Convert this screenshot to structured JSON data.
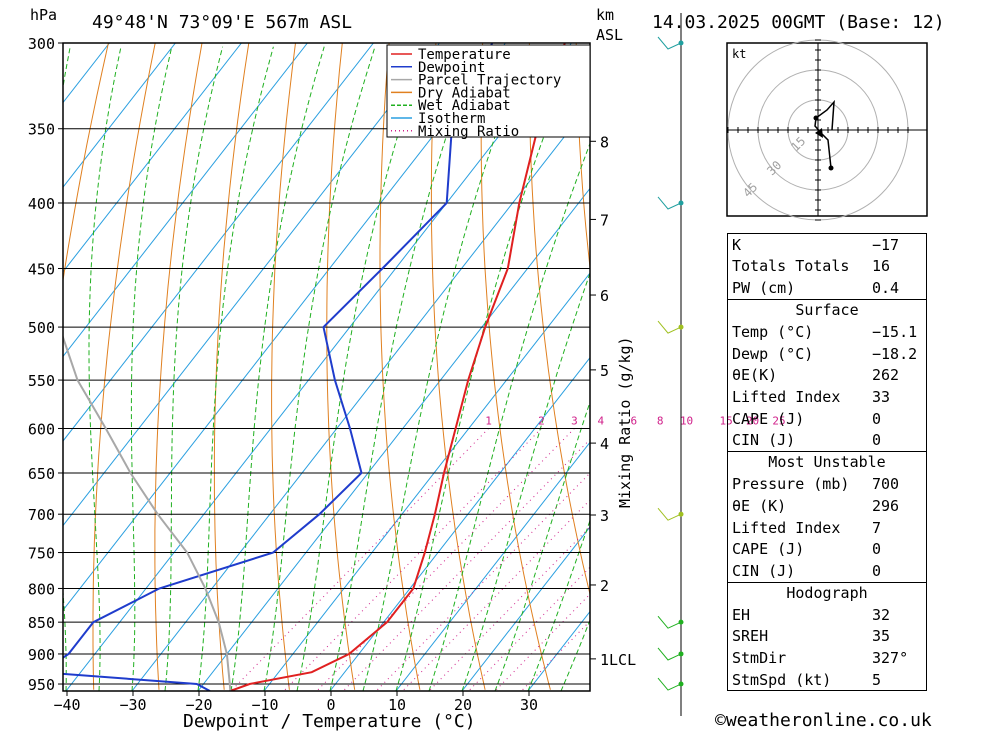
{
  "header": {
    "hpa": "hPa",
    "location": "49°48'N 73°09'E 567m ASL",
    "km": "km",
    "asl": "ASL",
    "date": "14.03.2025 00GMT (Base: 12)"
  },
  "chart_data": {
    "type": "line",
    "title": "",
    "xlabel": "Dewpoint / Temperature (°C)",
    "ylabel": "hPa",
    "y2label": "Mixing Ratio (g/kg)",
    "x_ticks": [
      -40,
      -30,
      -20,
      -10,
      0,
      10,
      20,
      30
    ],
    "x_tick_labels": [
      "−40",
      "−30",
      "−20",
      "−10",
      "0",
      "10",
      "20",
      "30"
    ],
    "y_ticks": [
      300,
      350,
      400,
      450,
      500,
      550,
      600,
      650,
      700,
      750,
      800,
      850,
      900,
      950
    ],
    "km_ticks": [
      {
        "km": "8",
        "p": 358
      },
      {
        "km": "7",
        "p": 412
      },
      {
        "km": "6",
        "p": 472
      },
      {
        "km": "5",
        "p": 540
      },
      {
        "km": "4",
        "p": 616
      },
      {
        "km": "3",
        "p": 701
      },
      {
        "km": "2",
        "p": 795
      },
      {
        "km": "1LCL",
        "p": 908
      }
    ],
    "mixing_ratio_labels": [
      "1",
      "2",
      "3",
      "4",
      "6",
      "8",
      "10",
      "15",
      "20",
      "25"
    ],
    "mixing_ratio_label_x": [
      -7,
      1,
      6,
      10,
      15,
      19,
      23,
      29,
      33,
      37
    ],
    "series": [
      {
        "name": "Temperature",
        "color": "#e02020",
        "points": [
          [
            300,
            -41
          ],
          [
            350,
            -35
          ],
          [
            400,
            -29
          ],
          [
            450,
            -23
          ],
          [
            500,
            -19.5
          ],
          [
            550,
            -15.8
          ],
          [
            600,
            -12
          ],
          [
            650,
            -8.5
          ],
          [
            700,
            -5
          ],
          [
            750,
            -2
          ],
          [
            800,
            0.5
          ],
          [
            850,
            0.5
          ],
          [
            900,
            -1.5
          ],
          [
            930,
            -5
          ],
          [
            950,
            -13
          ],
          [
            962,
            -15.1
          ]
        ]
      },
      {
        "name": "Dewpoint",
        "color": "#1f3ccc",
        "points": [
          [
            300,
            -52
          ],
          [
            350,
            -48
          ],
          [
            400,
            -40
          ],
          [
            450,
            -42
          ],
          [
            500,
            -44
          ],
          [
            550,
            -36
          ],
          [
            600,
            -28
          ],
          [
            650,
            -21
          ],
          [
            700,
            -22.5
          ],
          [
            750,
            -25
          ],
          [
            800,
            -38
          ],
          [
            850,
            -44
          ],
          [
            900,
            -44
          ],
          [
            930,
            -46
          ],
          [
            950,
            -21
          ],
          [
            962,
            -18.2
          ]
        ]
      },
      {
        "name": "Parcel Trajectory",
        "color": "#a8a8a8",
        "points": [
          [
            450,
            -93
          ],
          [
            500,
            -84
          ],
          [
            550,
            -75
          ],
          [
            600,
            -65
          ],
          [
            650,
            -56
          ],
          [
            700,
            -47
          ],
          [
            750,
            -38
          ],
          [
            800,
            -31
          ],
          [
            850,
            -25
          ],
          [
            900,
            -20
          ],
          [
            950,
            -16
          ],
          [
            962,
            -15.1
          ]
        ]
      }
    ],
    "legend": {
      "placement": "top-right",
      "entries": [
        {
          "label": "Temperature",
          "color": "#e02020",
          "style": "solid"
        },
        {
          "label": "Dewpoint",
          "color": "#1f3ccc",
          "style": "solid"
        },
        {
          "label": "Parcel Trajectory",
          "color": "#a8a8a8",
          "style": "solid"
        },
        {
          "label": "Dry Adiabat",
          "color": "#e08020",
          "style": "solid"
        },
        {
          "label": "Wet Adiabat",
          "color": "#20b020",
          "style": "dashed"
        },
        {
          "label": "Isotherm",
          "color": "#2a9fe0",
          "style": "solid"
        },
        {
          "label": "Mixing Ratio",
          "color": "#d0208a",
          "style": "dotted"
        }
      ]
    },
    "wind_barb_levels": [
      300,
      400,
      500,
      700,
      850,
      900,
      950
    ]
  },
  "hodograph": {
    "unit_label": "kt",
    "ring_labels": [
      "15",
      "30",
      "45"
    ]
  },
  "stats": {
    "k_label": "K",
    "k_value": "−17",
    "tt_label": "Totals Totals",
    "tt_value": "16",
    "pw_label": "PW (cm)",
    "pw_value": "0.4",
    "surface": {
      "title": "Surface",
      "temp_label": "Temp (°C)",
      "temp_value": "−15.1",
      "dewp_label": "Dewp (°C)",
      "dewp_value": "−18.2",
      "theta_label": "θE(K)",
      "theta_value": "262",
      "li_label": "Lifted Index",
      "li_value": "33",
      "cape_label": "CAPE (J)",
      "cape_value": "0",
      "cin_label": "CIN (J)",
      "cin_value": "0"
    },
    "most_unstable": {
      "title": "Most Unstable",
      "pressure_label": "Pressure (mb)",
      "pressure_value": "700",
      "theta_label": "θE (K)",
      "theta_value": "296",
      "li_label": "Lifted Index",
      "li_value": "7",
      "cape_label": "CAPE (J)",
      "cape_value": "0",
      "cin_label": "CIN (J)",
      "cin_value": "0"
    },
    "hodograph": {
      "title": "Hodograph",
      "eh_label": "EH",
      "eh_value": "32",
      "srh_label": "SREH",
      "srh_value": "35",
      "dir_label": "StmDir",
      "dir_value": "327°",
      "spd_label": "StmSpd (kt)",
      "spd_value": "5"
    }
  },
  "footer": {
    "copyright": "©weatheronline.co.uk"
  }
}
